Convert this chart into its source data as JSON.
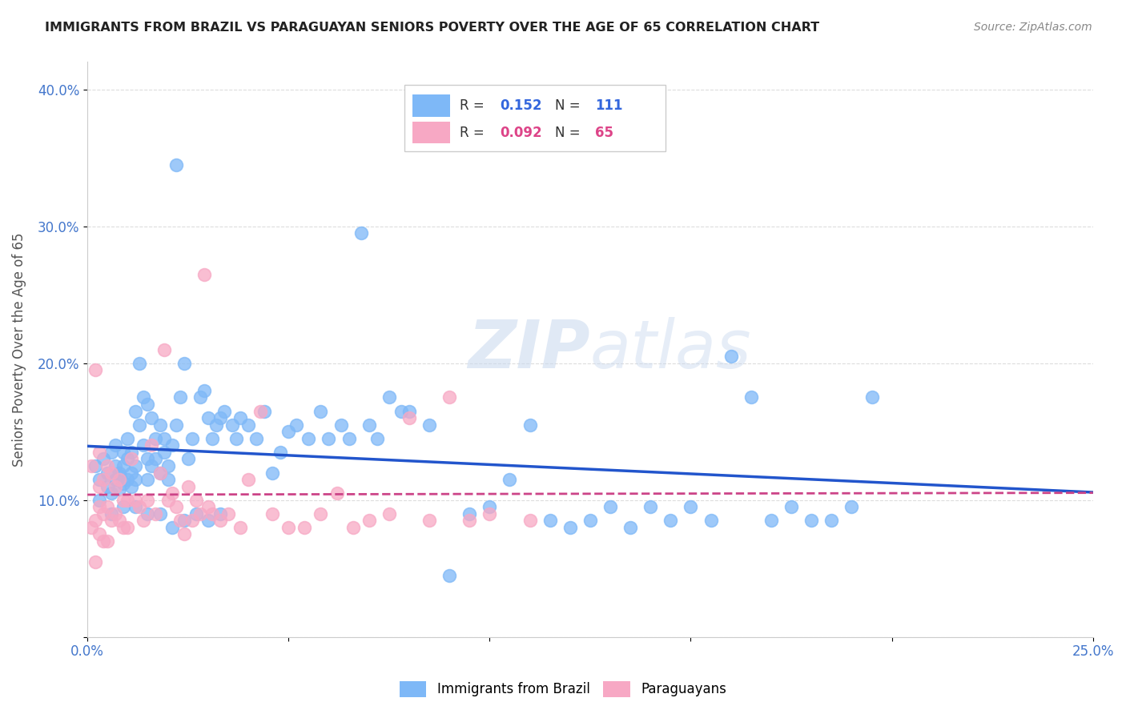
{
  "title": "IMMIGRANTS FROM BRAZIL VS PARAGUAYAN SENIORS POVERTY OVER THE AGE OF 65 CORRELATION CHART",
  "source": "Source: ZipAtlas.com",
  "ylabel": "Seniors Poverty Over the Age of 65",
  "xlim": [
    0,
    0.25
  ],
  "ylim": [
    0,
    0.42
  ],
  "brazil_R": 0.152,
  "brazil_N": 111,
  "paraguay_R": 0.092,
  "paraguay_N": 65,
  "brazil_color": "#7EB8F7",
  "paraguay_color": "#F7A8C4",
  "brazil_line_color": "#2255CC",
  "paraguay_line_color": "#CC4488",
  "watermark_zip": "ZIP",
  "watermark_atlas": "atlas",
  "brazil_scatter_x": [
    0.002,
    0.003,
    0.004,
    0.005,
    0.005,
    0.006,
    0.006,
    0.007,
    0.007,
    0.007,
    0.008,
    0.008,
    0.008,
    0.009,
    0.009,
    0.009,
    0.01,
    0.01,
    0.01,
    0.011,
    0.011,
    0.011,
    0.012,
    0.012,
    0.012,
    0.013,
    0.013,
    0.014,
    0.014,
    0.015,
    0.015,
    0.015,
    0.016,
    0.016,
    0.017,
    0.017,
    0.018,
    0.018,
    0.019,
    0.019,
    0.02,
    0.02,
    0.021,
    0.022,
    0.022,
    0.023,
    0.024,
    0.025,
    0.026,
    0.028,
    0.029,
    0.03,
    0.031,
    0.032,
    0.033,
    0.034,
    0.036,
    0.037,
    0.038,
    0.04,
    0.042,
    0.044,
    0.046,
    0.048,
    0.05,
    0.052,
    0.055,
    0.058,
    0.06,
    0.063,
    0.065,
    0.068,
    0.07,
    0.072,
    0.075,
    0.078,
    0.08,
    0.085,
    0.09,
    0.095,
    0.1,
    0.105,
    0.11,
    0.115,
    0.12,
    0.125,
    0.13,
    0.135,
    0.14,
    0.145,
    0.15,
    0.155,
    0.16,
    0.165,
    0.17,
    0.175,
    0.18,
    0.185,
    0.19,
    0.195,
    0.003,
    0.006,
    0.009,
    0.012,
    0.015,
    0.018,
    0.021,
    0.024,
    0.027,
    0.03,
    0.033
  ],
  "brazil_scatter_y": [
    0.125,
    0.115,
    0.13,
    0.12,
    0.11,
    0.135,
    0.105,
    0.14,
    0.115,
    0.125,
    0.12,
    0.108,
    0.118,
    0.135,
    0.112,
    0.125,
    0.13,
    0.115,
    0.145,
    0.12,
    0.11,
    0.135,
    0.165,
    0.125,
    0.115,
    0.2,
    0.155,
    0.175,
    0.14,
    0.13,
    0.17,
    0.115,
    0.16,
    0.125,
    0.145,
    0.13,
    0.12,
    0.155,
    0.135,
    0.145,
    0.115,
    0.125,
    0.14,
    0.345,
    0.155,
    0.175,
    0.2,
    0.13,
    0.145,
    0.175,
    0.18,
    0.16,
    0.145,
    0.155,
    0.16,
    0.165,
    0.155,
    0.145,
    0.16,
    0.155,
    0.145,
    0.165,
    0.12,
    0.135,
    0.15,
    0.155,
    0.145,
    0.165,
    0.145,
    0.155,
    0.145,
    0.295,
    0.155,
    0.145,
    0.175,
    0.165,
    0.165,
    0.155,
    0.045,
    0.09,
    0.095,
    0.115,
    0.155,
    0.085,
    0.08,
    0.085,
    0.095,
    0.08,
    0.095,
    0.085,
    0.095,
    0.085,
    0.205,
    0.175,
    0.085,
    0.095,
    0.085,
    0.085,
    0.095,
    0.175,
    0.1,
    0.09,
    0.095,
    0.095,
    0.09,
    0.09,
    0.08,
    0.085,
    0.09,
    0.085,
    0.09
  ],
  "paraguay_scatter_x": [
    0.001,
    0.001,
    0.002,
    0.002,
    0.002,
    0.003,
    0.003,
    0.003,
    0.003,
    0.004,
    0.004,
    0.004,
    0.005,
    0.005,
    0.005,
    0.006,
    0.006,
    0.007,
    0.007,
    0.008,
    0.008,
    0.009,
    0.009,
    0.01,
    0.01,
    0.011,
    0.012,
    0.013,
    0.014,
    0.015,
    0.016,
    0.017,
    0.018,
    0.019,
    0.02,
    0.021,
    0.022,
    0.023,
    0.024,
    0.025,
    0.026,
    0.027,
    0.028,
    0.029,
    0.03,
    0.031,
    0.033,
    0.035,
    0.038,
    0.04,
    0.043,
    0.046,
    0.05,
    0.054,
    0.058,
    0.062,
    0.066,
    0.07,
    0.075,
    0.08,
    0.085,
    0.09,
    0.095,
    0.1,
    0.11
  ],
  "paraguay_scatter_y": [
    0.125,
    0.08,
    0.195,
    0.085,
    0.055,
    0.135,
    0.11,
    0.095,
    0.075,
    0.115,
    0.09,
    0.07,
    0.125,
    0.095,
    0.07,
    0.12,
    0.085,
    0.11,
    0.09,
    0.115,
    0.085,
    0.1,
    0.08,
    0.1,
    0.08,
    0.13,
    0.1,
    0.095,
    0.085,
    0.1,
    0.14,
    0.09,
    0.12,
    0.21,
    0.1,
    0.105,
    0.095,
    0.085,
    0.075,
    0.11,
    0.085,
    0.1,
    0.09,
    0.265,
    0.095,
    0.09,
    0.085,
    0.09,
    0.08,
    0.115,
    0.165,
    0.09,
    0.08,
    0.08,
    0.09,
    0.105,
    0.08,
    0.085,
    0.09,
    0.16,
    0.085,
    0.175,
    0.085,
    0.09,
    0.085
  ]
}
